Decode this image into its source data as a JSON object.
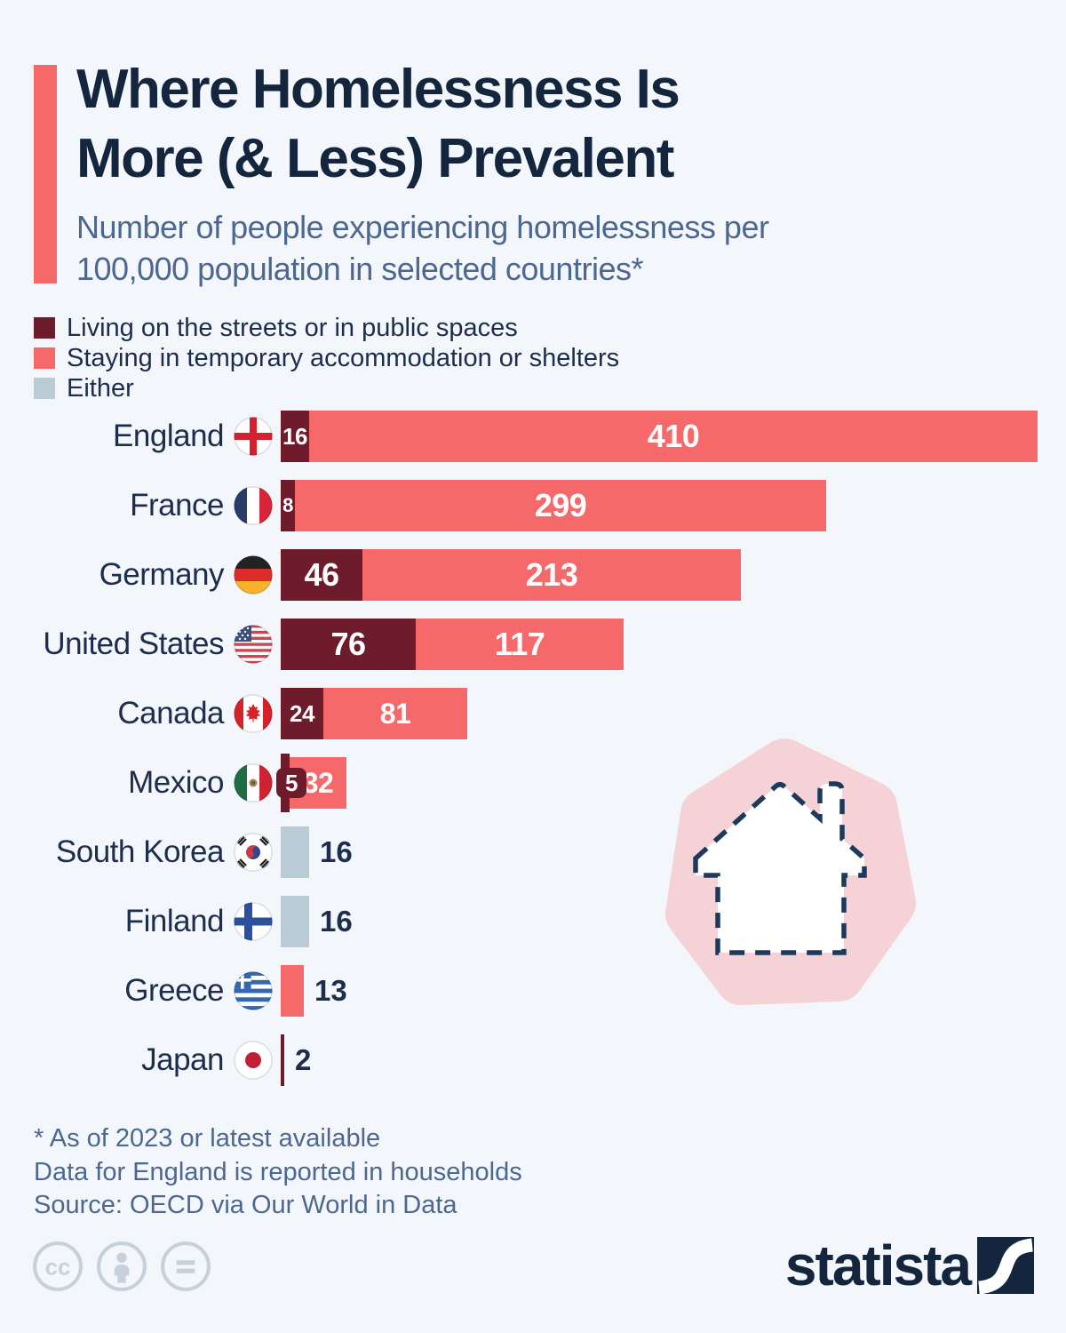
{
  "title": {
    "line1": "Where Homelessness Is",
    "line2": "More (& Less) Prevalent"
  },
  "subtitle": "Number of people experiencing homelessness per 100,000 population in selected countries*",
  "legend": [
    {
      "key": "streets",
      "label": "Living on the streets or in public spaces",
      "color": "#6e1c2b"
    },
    {
      "key": "shelters",
      "label": "Staying in temporary accommodation or shelters",
      "color": "#f5696a"
    },
    {
      "key": "either",
      "label": "Either",
      "color": "#b9cbd5"
    }
  ],
  "chart_data": {
    "type": "bar",
    "orientation": "horizontal",
    "title": "Number of people experiencing homelessness per 100,000 population in selected countries",
    "categories": [
      "England",
      "France",
      "Germany",
      "United States",
      "Canada",
      "Mexico",
      "South Korea",
      "Finland",
      "Greece",
      "Japan"
    ],
    "series": [
      {
        "name": "Living on the streets or in public spaces",
        "values": [
          16,
          8,
          46,
          76,
          24,
          5,
          null,
          null,
          null,
          2
        ]
      },
      {
        "name": "Staying in temporary accommodation or shelters",
        "values": [
          410,
          299,
          213,
          117,
          81,
          32,
          null,
          null,
          13,
          null
        ]
      },
      {
        "name": "Either",
        "values": [
          null,
          null,
          null,
          null,
          null,
          null,
          16,
          16,
          null,
          null
        ]
      }
    ],
    "value_axis": {
      "min": 0,
      "max": 426,
      "shown": false
    },
    "legend_position": "top-left",
    "grid": false
  },
  "rows": [
    {
      "country": "England",
      "flag": "england",
      "segments": [
        {
          "type": "streets",
          "value": 16,
          "label": "16",
          "size": "sm"
        },
        {
          "type": "shelters",
          "value": 410,
          "label": "410",
          "size": "lg"
        }
      ]
    },
    {
      "country": "France",
      "flag": "france",
      "segments": [
        {
          "type": "streets",
          "value": 8,
          "label": "8",
          "size": "xs"
        },
        {
          "type": "shelters",
          "value": 299,
          "label": "299",
          "size": "lg"
        }
      ]
    },
    {
      "country": "Germany",
      "flag": "germany",
      "segments": [
        {
          "type": "streets",
          "value": 46,
          "label": "46",
          "size": "lg"
        },
        {
          "type": "shelters",
          "value": 213,
          "label": "213",
          "size": "lg"
        }
      ]
    },
    {
      "country": "United States",
      "flag": "us",
      "segments": [
        {
          "type": "streets",
          "value": 76,
          "label": "76",
          "size": "lg"
        },
        {
          "type": "shelters",
          "value": 117,
          "label": "117",
          "size": "lg"
        }
      ]
    },
    {
      "country": "Canada",
      "flag": "canada",
      "segments": [
        {
          "type": "streets",
          "value": 24,
          "label": "24",
          "size": "sm"
        },
        {
          "type": "shelters",
          "value": 81,
          "label": "81",
          "size": "md"
        }
      ]
    },
    {
      "country": "Mexico",
      "flag": "mexico",
      "segments": [
        {
          "type": "streets",
          "value": 5,
          "label": "5",
          "size": "sm",
          "badge": true,
          "tall": true
        },
        {
          "type": "shelters",
          "value": 32,
          "label": "32",
          "size": "md"
        }
      ]
    },
    {
      "country": "South Korea",
      "flag": "southkorea",
      "segments": [
        {
          "type": "either",
          "value": 16
        }
      ],
      "outside_label": "16"
    },
    {
      "country": "Finland",
      "flag": "finland",
      "segments": [
        {
          "type": "either",
          "value": 16
        }
      ],
      "outside_label": "16"
    },
    {
      "country": "Greece",
      "flag": "greece",
      "segments": [
        {
          "type": "shelters",
          "value": 13
        }
      ],
      "outside_label": "13"
    },
    {
      "country": "Japan",
      "flag": "japan",
      "segments": [
        {
          "type": "streets",
          "value": 2
        }
      ],
      "outside_label": "2"
    }
  ],
  "footnotes": [
    "* As of 2023 or latest available",
    "Data for England is reported in households"
  ],
  "source": "Source: OECD via Our World in Data",
  "branding": {
    "logo_text": "statista"
  },
  "colors": {
    "background": "#f3f6fa",
    "accent": "#f5696a",
    "streets": "#6e1c2b",
    "shelters": "#f5696a",
    "either": "#b9cbd5",
    "navy_text": "#14263e",
    "muted_text": "#4d6890",
    "blob_pink": "#f5d2d6"
  }
}
